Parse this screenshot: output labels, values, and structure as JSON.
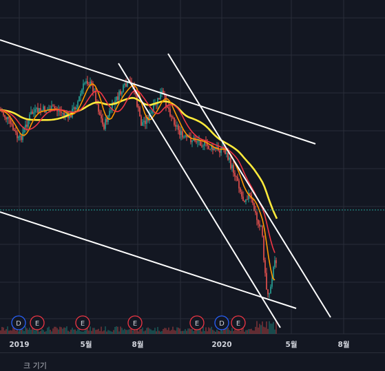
{
  "chart_data": {
    "type": "candlestick",
    "x_axis_labels": [
      "2019",
      "5월",
      "8월",
      "2020",
      "5월",
      "8월"
    ],
    "indicator_lines": [
      {
        "name": "",
        "color": "#ffeb3b"
      },
      {
        "name": "",
        "color": "#ff9800"
      },
      {
        "name": "",
        "color": "#f23645"
      }
    ],
    "trendlines_color": "#ffffff",
    "horizontal_line_color": "#26a69a",
    "event_markers": [
      "D",
      "E",
      "E",
      "E",
      "E",
      "D",
      "E"
    ],
    "colors": {
      "background": "#131722",
      "grid": "#2a2e39",
      "up": "#26a69a",
      "down": "#ef5350"
    }
  },
  "footer": {
    "label": "크 기기"
  }
}
